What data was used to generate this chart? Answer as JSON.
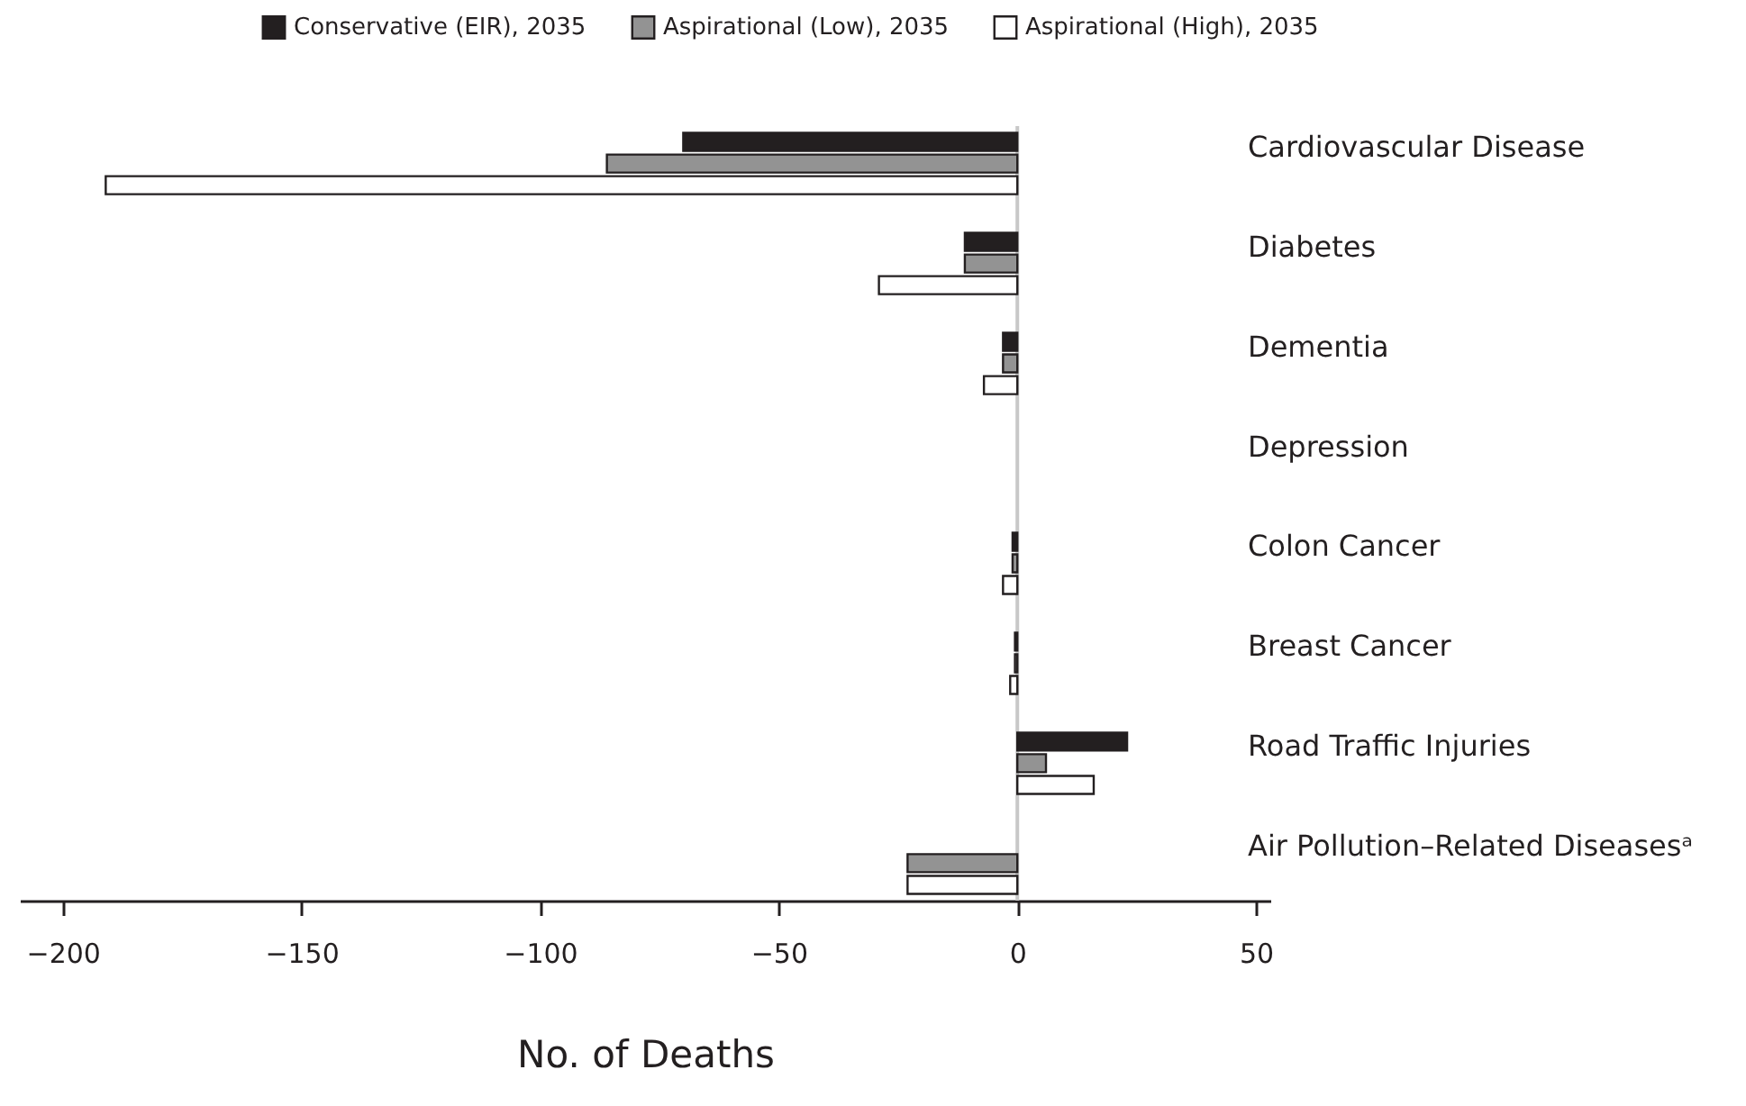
{
  "chart_data": {
    "type": "bar",
    "orientation": "horizontal",
    "xlabel": "No. of Deaths",
    "categories": [
      "Cardiovascular Disease",
      "Diabetes",
      "Dementia",
      "Depression",
      "Colon Cancer",
      "Breast Cancer",
      "Road Traffic Injuries",
      "Air Pollution–Related Diseasesᵃ"
    ],
    "series": [
      {
        "name": "Conservative (EIR), 2035",
        "color": "#231f20",
        "values": [
          -70,
          -11,
          -3,
          null,
          -1,
          -0.5,
          23,
          null
        ]
      },
      {
        "name": "Aspirational (Low), 2035",
        "color": "#939393",
        "values": [
          -86,
          -11,
          -3,
          null,
          -1,
          -0.5,
          6,
          -23
        ]
      },
      {
        "name": "Aspirational (High), 2035",
        "color": "#ffffff",
        "values": [
          -191,
          -29,
          -7,
          null,
          -3,
          -1.5,
          16,
          -23
        ]
      }
    ],
    "xlim": [
      -209,
      53
    ],
    "xticks": [
      -200,
      -150,
      -100,
      -50,
      0,
      50
    ],
    "ref_lines": [
      {
        "axis": "x",
        "value": 0,
        "color": "#c8c8c8"
      }
    ],
    "legend": "top",
    "grid": false
  }
}
